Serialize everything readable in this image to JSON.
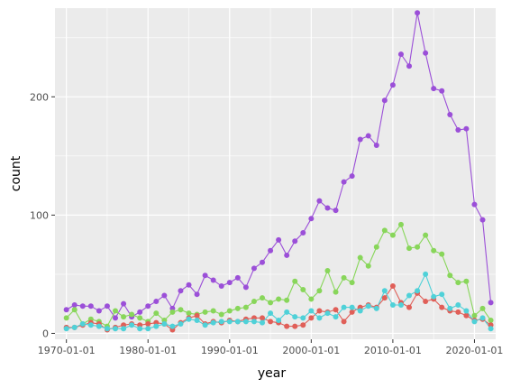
{
  "chart_data": {
    "type": "line",
    "xlabel": "year",
    "ylabel": "count",
    "xlim": [
      1968.6,
      2022.6
    ],
    "ylim": [
      -5,
      275
    ],
    "x_ticks": [
      1970,
      1980,
      1990,
      2000,
      2010,
      2020
    ],
    "x_tick_labels": [
      "1970-01-01",
      "1980-01-01",
      "1990-01-01",
      "2000-01-01",
      "2010-01-01",
      "2020-01-01"
    ],
    "y_ticks": [
      0,
      100,
      200
    ],
    "y_tick_labels": [
      "0",
      "100",
      "200"
    ],
    "grid": true,
    "background": "#ebebeb",
    "legend": "none",
    "x": [
      1970,
      1971,
      1972,
      1973,
      1974,
      1975,
      1976,
      1977,
      1978,
      1979,
      1980,
      1981,
      1982,
      1983,
      1984,
      1985,
      1986,
      1987,
      1988,
      1989,
      1990,
      1991,
      1992,
      1993,
      1994,
      1995,
      1996,
      1997,
      1998,
      1999,
      2000,
      2001,
      2002,
      2003,
      2004,
      2005,
      2006,
      2007,
      2008,
      2009,
      2010,
      2011,
      2012,
      2013,
      2014,
      2015,
      2016,
      2017,
      2018,
      2019,
      2020,
      2021,
      2022
    ],
    "series": [
      {
        "color": "#9b4fd8",
        "values": [
          20,
          24,
          23,
          23,
          19,
          23,
          13,
          25,
          14,
          18,
          23,
          27,
          32,
          21,
          36,
          41,
          33,
          49,
          45,
          40,
          43,
          47,
          39,
          55,
          60,
          70,
          79,
          66,
          78,
          85,
          97,
          112,
          106,
          104,
          128,
          133,
          164,
          167,
          159,
          197,
          210,
          236,
          226,
          271,
          237,
          207,
          205,
          185,
          172,
          173,
          109,
          96,
          26
        ]
      },
      {
        "color": "#88d65a",
        "values": [
          13,
          20,
          8,
          12,
          10,
          6,
          19,
          14,
          16,
          13,
          10,
          17,
          11,
          18,
          20,
          17,
          16,
          18,
          19,
          16,
          19,
          21,
          22,
          27,
          30,
          26,
          29,
          28,
          44,
          37,
          29,
          36,
          53,
          35,
          47,
          43,
          64,
          57,
          73,
          87,
          83,
          92,
          72,
          73,
          83,
          70,
          67,
          49,
          43,
          44,
          15,
          21,
          11
        ]
      },
      {
        "color": "#e05f58",
        "values": [
          5,
          5,
          7,
          9,
          8,
          3,
          5,
          7,
          8,
          7,
          8,
          9,
          8,
          3,
          9,
          13,
          15,
          8,
          10,
          9,
          11,
          10,
          12,
          13,
          13,
          10,
          9,
          6,
          6,
          7,
          13,
          19,
          18,
          20,
          10,
          18,
          22,
          24,
          22,
          30,
          40,
          26,
          22,
          34,
          27,
          29,
          22,
          19,
          18,
          15,
          11,
          12,
          7
        ]
      },
      {
        "color": "#4fd1d8",
        "values": [
          4,
          5,
          8,
          7,
          6,
          4,
          4,
          4,
          7,
          4,
          4,
          6,
          8,
          6,
          8,
          12,
          11,
          7,
          9,
          10,
          10,
          10,
          10,
          10,
          9,
          17,
          11,
          18,
          14,
          13,
          19,
          13,
          17,
          14,
          22,
          22,
          19,
          23,
          21,
          36,
          24,
          24,
          32,
          36,
          50,
          31,
          33,
          21,
          24,
          19,
          10,
          13,
          4
        ]
      }
    ]
  }
}
